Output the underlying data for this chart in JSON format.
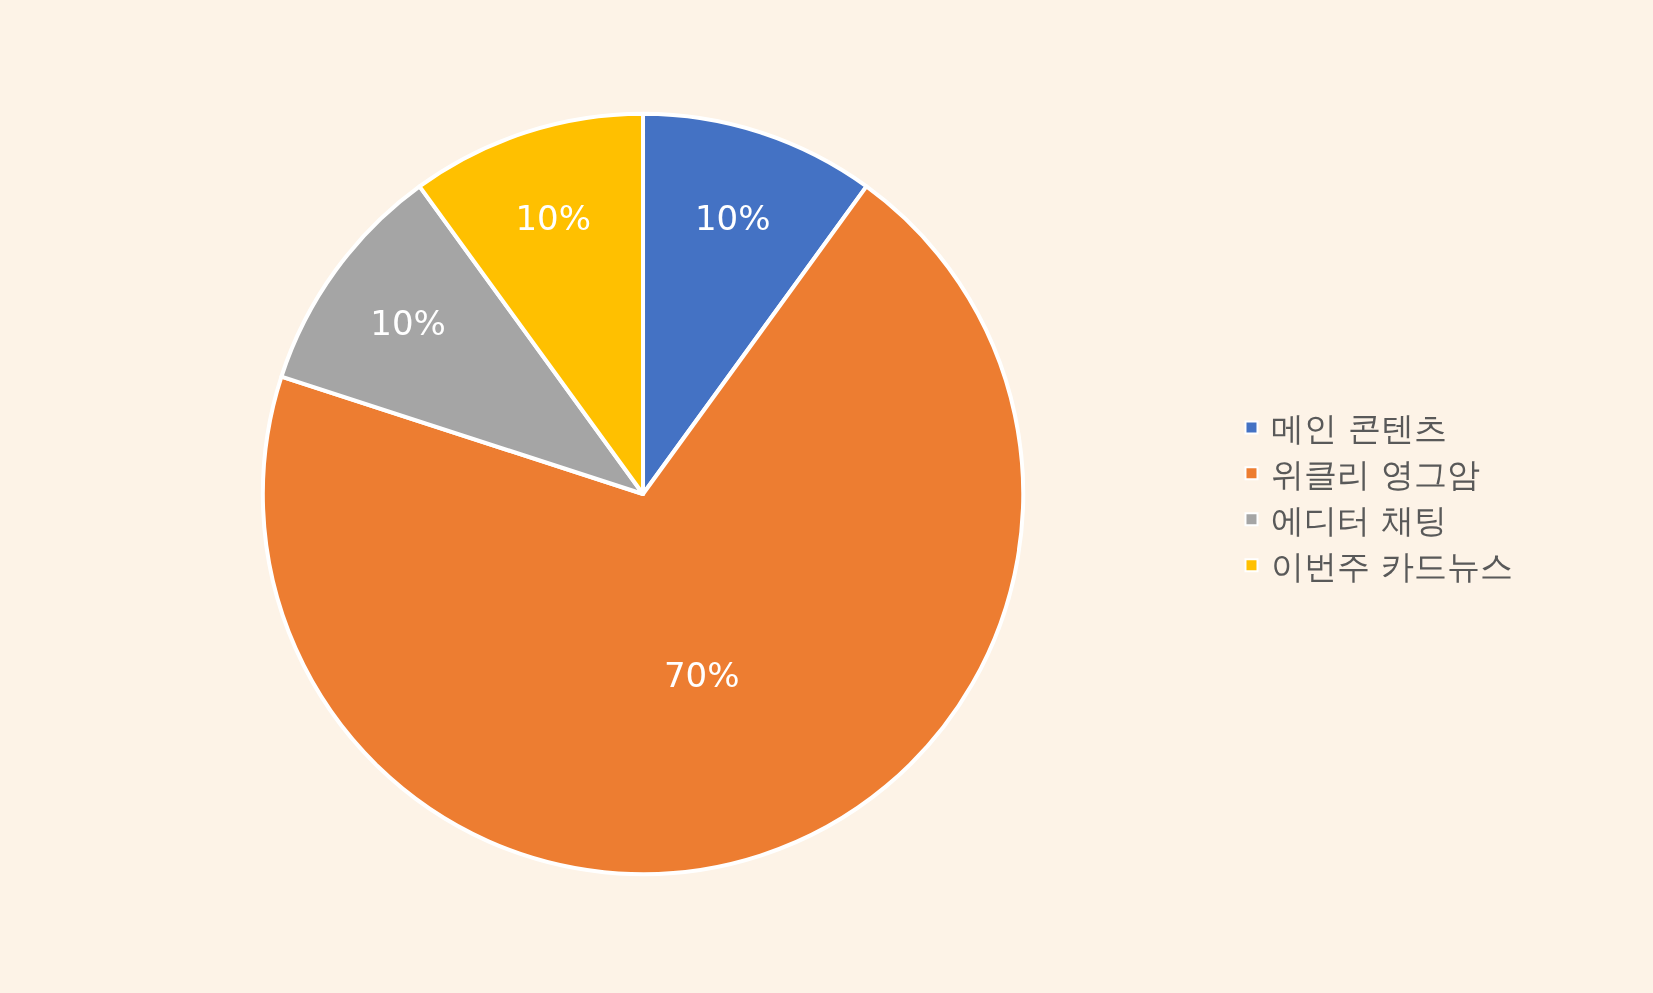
{
  "chart_data": {
    "type": "pie",
    "categories": [
      "메인 콘텐츠",
      "위클리 영그암",
      "에디터 채팅",
      "이번주 카드뉴스"
    ],
    "values": [
      10,
      70,
      10,
      10
    ],
    "colors": [
      "#4472c4",
      "#ed7d31",
      "#a5a5a5",
      "#ffc000"
    ],
    "value_labels": [
      "10%",
      "70%",
      "10%",
      "10%"
    ],
    "legend": "right"
  }
}
